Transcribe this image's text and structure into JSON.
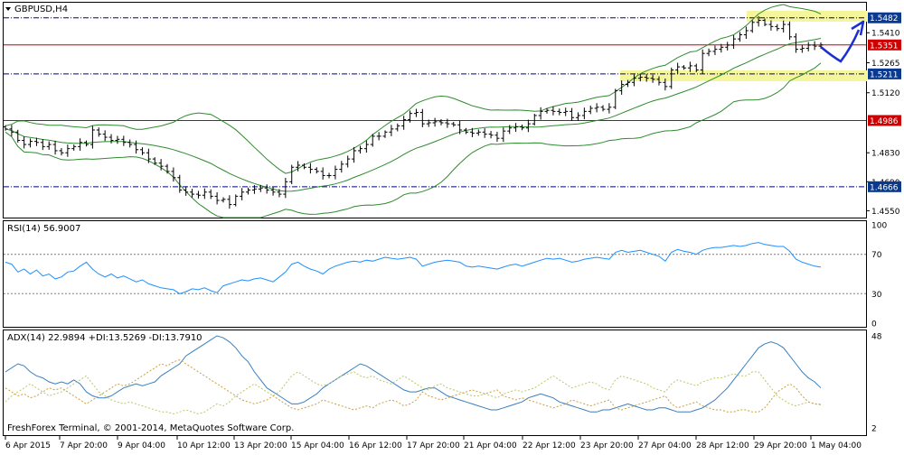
{
  "colors": {
    "background": "#ffffff",
    "candle": "#000000",
    "bollinger": "#2e8b2e",
    "dash_line": "#00008b",
    "support_red": "#cc0000",
    "highlight_yellow": "#f5f59a",
    "rsi_line": "#1e90ff",
    "adx_line": "#3a7fbf",
    "plus_di": "#b8c96b",
    "minus_di": "#c8a040",
    "arrow": "#1a2fd0",
    "level_dot": "#7a7a7a",
    "label_blue_bg": "#0a3a8f",
    "label_red_bg": "#cc0000",
    "label_text": "#ffffff"
  },
  "main_panel": {
    "title": "GBPUSD,H4",
    "axis_labels": [
      "1.5410",
      "1.5265",
      "1.5120",
      "1.4830",
      "1.4690",
      "1.4550"
    ],
    "levels": [
      {
        "name": "resistance-dash",
        "value": "1.5482",
        "style": "dash",
        "label_color": "blue"
      },
      {
        "name": "current-price",
        "value": "1.5351",
        "style": "solid",
        "label_color": "red"
      },
      {
        "name": "support-dash",
        "value": "1.5211",
        "style": "dash",
        "label_color": "blue"
      },
      {
        "name": "support-red",
        "value": "1.4986",
        "style": "solid",
        "label_color": "red"
      },
      {
        "name": "low-dash",
        "value": "1.4666",
        "style": "dash",
        "label_color": "blue"
      }
    ]
  },
  "rsi_panel": {
    "title": "RSI(14) 56.9007",
    "axis_labels": [
      "100",
      "70",
      "30",
      "0"
    ],
    "levels": [
      70,
      30
    ]
  },
  "adx_panel": {
    "title": "ADX(14) 22.9894 +DI:13.5269 -DI:13.7910",
    "axis_labels": [
      "48",
      "2"
    ]
  },
  "copyright": "FreshForex Terminal, © 2001-2014, MetaQuotes Software Corp.",
  "time_axis": [
    "6 Apr 2015",
    "7 Apr 20:00",
    "9 Apr 04:00",
    "10 Apr 12:00",
    "13 Apr 20:00",
    "15 Apr 04:00",
    "16 Apr 12:00",
    "17 Apr 20:00",
    "21 Apr 04:00",
    "22 Apr 12:00",
    "23 Apr 20:00",
    "27 Apr 04:00",
    "28 Apr 12:00",
    "29 Apr 20:00",
    "1 May 04:00"
  ],
  "chart_data": [
    {
      "type": "candlestick",
      "title": "GBPUSD,H4",
      "yrange": [
        1.4517,
        1.5555
      ],
      "close": [
        1.4945,
        1.493,
        1.489,
        1.487,
        1.4885,
        1.488,
        1.486,
        1.487,
        1.484,
        1.483,
        1.485,
        1.486,
        1.488,
        1.487,
        1.494,
        1.492,
        1.4905,
        1.489,
        1.4895,
        1.488,
        1.487,
        1.4845,
        1.483,
        1.48,
        1.478,
        1.4765,
        1.474,
        1.471,
        1.465,
        1.464,
        1.463,
        1.4625,
        1.464,
        1.462,
        1.46,
        1.4605,
        1.458,
        1.462,
        1.464,
        1.465,
        1.4655,
        1.466,
        1.465,
        1.464,
        1.463,
        1.469,
        1.476,
        1.477,
        1.476,
        1.475,
        1.474,
        1.472,
        1.472,
        1.475,
        1.4775,
        1.48,
        1.484,
        1.485,
        1.487,
        1.491,
        1.491,
        1.493,
        1.4945,
        1.496,
        1.499,
        1.502,
        1.5025,
        1.497,
        1.4975,
        1.498,
        1.4975,
        1.497,
        1.4965,
        1.494,
        1.493,
        1.4925,
        1.493,
        1.492,
        1.4915,
        1.49,
        1.4935,
        1.495,
        1.4955,
        1.495,
        1.497,
        1.501,
        1.503,
        1.5035,
        1.503,
        1.5025,
        1.503,
        1.5,
        1.501,
        1.503,
        1.5045,
        1.505,
        1.504,
        1.505,
        1.513,
        1.516,
        1.517,
        1.519,
        1.5195,
        1.519,
        1.5185,
        1.517,
        1.515,
        1.523,
        1.5245,
        1.524,
        1.525,
        1.523,
        1.531,
        1.532,
        1.533,
        1.534,
        1.535,
        1.538,
        1.54,
        1.542,
        1.546,
        1.547,
        1.545,
        1.544,
        1.543,
        1.545,
        1.539,
        1.533,
        1.5335,
        1.535,
        1.5345,
        1.5351
      ]
    },
    {
      "type": "line",
      "title": "RSI(14) 56.9007",
      "yrange": [
        0,
        100
      ],
      "levels": [
        70,
        30
      ],
      "values": [
        62,
        60,
        52,
        55,
        50,
        54,
        48,
        50,
        45,
        47,
        52,
        53,
        58,
        62,
        55,
        50,
        47,
        50,
        46,
        48,
        45,
        42,
        44,
        40,
        38,
        36,
        35,
        34,
        30,
        32,
        35,
        34,
        36,
        33,
        31,
        38,
        40,
        42,
        44,
        43,
        45,
        46,
        44,
        42,
        47,
        52,
        60,
        62,
        58,
        55,
        53,
        50,
        55,
        58,
        60,
        62,
        63,
        62,
        64,
        63,
        65,
        67,
        66,
        65,
        66,
        67,
        65,
        58,
        60,
        62,
        63,
        64,
        63,
        62,
        58,
        57,
        58,
        57,
        56,
        55,
        57,
        59,
        60,
        58,
        60,
        62,
        64,
        66,
        65,
        66,
        64,
        62,
        63,
        65,
        66,
        67,
        66,
        65,
        72,
        74,
        72,
        73,
        74,
        72,
        70,
        68,
        63,
        72,
        75,
        73,
        72,
        70,
        74,
        76,
        77,
        77,
        78,
        79,
        78,
        79,
        81,
        82,
        80,
        79,
        78,
        78,
        73,
        65,
        62,
        60,
        58,
        57
      ]
    },
    {
      "type": "line",
      "title": "ADX(14) 22.9894 +DI:13.5269 -DI:13.7910",
      "yrange": [
        2,
        48
      ],
      "series": [
        {
          "name": "ADX(14)",
          "values": [
            30,
            32,
            34,
            33,
            30,
            28,
            27,
            25,
            24,
            25,
            24,
            26,
            24,
            20,
            18,
            17,
            17,
            18,
            20,
            22,
            23,
            24,
            23,
            24,
            25,
            28,
            30,
            32,
            34,
            38,
            40,
            42,
            44,
            46,
            48,
            47,
            45,
            42,
            38,
            35,
            30,
            26,
            22,
            20,
            18,
            16,
            14,
            14,
            15,
            17,
            19,
            22,
            24,
            26,
            28,
            30,
            32,
            34,
            33,
            31,
            29,
            27,
            25,
            23,
            21,
            20,
            20,
            21,
            22,
            22,
            20,
            18,
            17,
            16,
            15,
            14,
            13,
            12,
            11,
            11,
            12,
            13,
            14,
            15,
            17,
            18,
            19,
            18,
            17,
            15,
            14,
            13,
            12,
            11,
            10,
            10,
            11,
            11,
            12,
            13,
            14,
            13,
            12,
            11,
            11,
            12,
            12,
            11,
            10,
            10,
            10,
            11,
            12,
            14,
            16,
            19,
            22,
            26,
            30,
            34,
            38,
            42,
            44,
            45,
            44,
            42,
            38,
            34,
            30,
            27,
            25,
            22
          ]
        },
        {
          "name": "+DI",
          "values": [
            15,
            18,
            20,
            22,
            24,
            22,
            20,
            18,
            19,
            20,
            22,
            24,
            26,
            28,
            24,
            20,
            18,
            16,
            15,
            14,
            15,
            14,
            13,
            12,
            11,
            10,
            10,
            9,
            10,
            11,
            10,
            9,
            10,
            12,
            14,
            13,
            15,
            18,
            20,
            22,
            24,
            22,
            20,
            18,
            20,
            24,
            28,
            30,
            28,
            26,
            24,
            23,
            24,
            26,
            28,
            29,
            30,
            28,
            27,
            28,
            26,
            25,
            24,
            26,
            28,
            26,
            24,
            22,
            21,
            23,
            24,
            22,
            21,
            20,
            19,
            18,
            18,
            19,
            18,
            17,
            19,
            20,
            21,
            20,
            21,
            22,
            24,
            26,
            28,
            26,
            24,
            22,
            23,
            24,
            25,
            24,
            22,
            21,
            26,
            28,
            27,
            26,
            25,
            24,
            22,
            21,
            20,
            24,
            26,
            25,
            24,
            23,
            25,
            26,
            27,
            27,
            28,
            29,
            28,
            28,
            30,
            30,
            26,
            22,
            18,
            16,
            14,
            13,
            14,
            15,
            14,
            13.5
          ]
        },
        {
          "name": "-DI",
          "values": [
            22,
            20,
            18,
            19,
            17,
            18,
            20,
            22,
            21,
            22,
            20,
            18,
            16,
            14,
            16,
            18,
            20,
            22,
            24,
            23,
            24,
            26,
            28,
            30,
            32,
            34,
            33,
            35,
            36,
            34,
            32,
            30,
            28,
            26,
            24,
            22,
            20,
            18,
            16,
            15,
            14,
            15,
            16,
            18,
            16,
            14,
            12,
            11,
            12,
            13,
            14,
            16,
            15,
            14,
            13,
            12,
            11,
            12,
            13,
            12,
            14,
            15,
            16,
            15,
            13,
            14,
            16,
            20,
            18,
            17,
            16,
            17,
            18,
            19,
            20,
            21,
            20,
            19,
            20,
            21,
            18,
            17,
            16,
            17,
            16,
            15,
            14,
            13,
            12,
            13,
            14,
            16,
            15,
            14,
            13,
            14,
            15,
            16,
            12,
            11,
            12,
            13,
            14,
            15,
            16,
            17,
            18,
            14,
            12,
            13,
            14,
            15,
            13,
            12,
            11,
            11,
            10,
            10,
            11,
            11,
            10,
            10,
            12,
            16,
            20,
            22,
            24,
            22,
            18,
            15,
            14,
            13.8
          ]
        }
      ]
    }
  ]
}
